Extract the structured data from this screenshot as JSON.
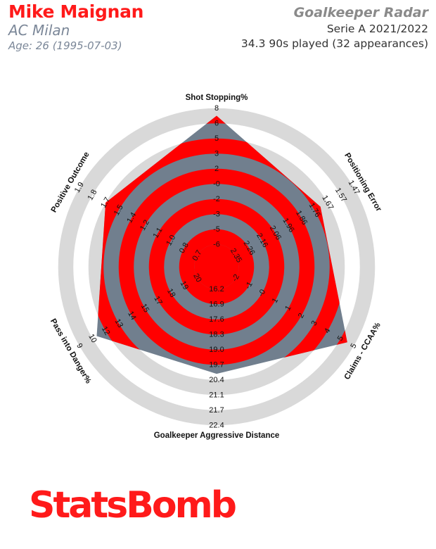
{
  "header": {
    "player_name": "Mike Maignan",
    "team": "AC Milan",
    "age_line": "Age: 26 (1995-07-03)",
    "radar_title": "Goalkeeper Radar",
    "competition": "Serie A 2021/2022",
    "minutes_line": "34.3 90s played (32 appearances)"
  },
  "colors": {
    "accent": "#ff0000",
    "polygon": "#717f8e",
    "outer_ring": "#d9d9d9",
    "name": "#ff1a1a",
    "muted": "#7b8798"
  },
  "logo_text": "StatsBomb",
  "chart_data": {
    "type": "radar",
    "axes": [
      {
        "label": "Shot Stopping%",
        "ticks": [
          "-6",
          "-5",
          "-3",
          "-2",
          "-0",
          "2",
          "3",
          "5",
          "6",
          "8"
        ],
        "value": 8
      },
      {
        "label": "Positioning Error",
        "ticks": [
          "2.35",
          "2.26",
          "2.16",
          "2.06",
          "1.96",
          "1.86",
          "1.76",
          "1.67",
          "1.57",
          "1.47"
        ],
        "value": 1.67
      },
      {
        "label": "Claims - CCAA%",
        "ticks": [
          "-2",
          "-1",
          "-0",
          "1",
          "1",
          "2",
          "3",
          "4",
          "5",
          "5"
        ],
        "value": 5
      },
      {
        "label": "Goalkeeper Aggressive Distance",
        "ticks": [
          "16.2",
          "16.9",
          "17.6",
          "18.3",
          "19.0",
          "19.7",
          "20.4",
          "21.1",
          "21.7",
          "22.4"
        ],
        "value": 20.4
      },
      {
        "label": "Pass into Danger%",
        "ticks": [
          "20",
          "19",
          "18",
          "17",
          "15",
          "14",
          "13",
          "12",
          "10",
          "9"
        ],
        "value": 10
      },
      {
        "label": "Positive Outcome",
        "ticks": [
          "0.7",
          "0.8",
          "1.0",
          "1.1",
          "1.2",
          "1.4",
          "1.5",
          "1.7",
          "1.8",
          "1.9"
        ],
        "value": 1.7
      }
    ],
    "grid": true
  }
}
